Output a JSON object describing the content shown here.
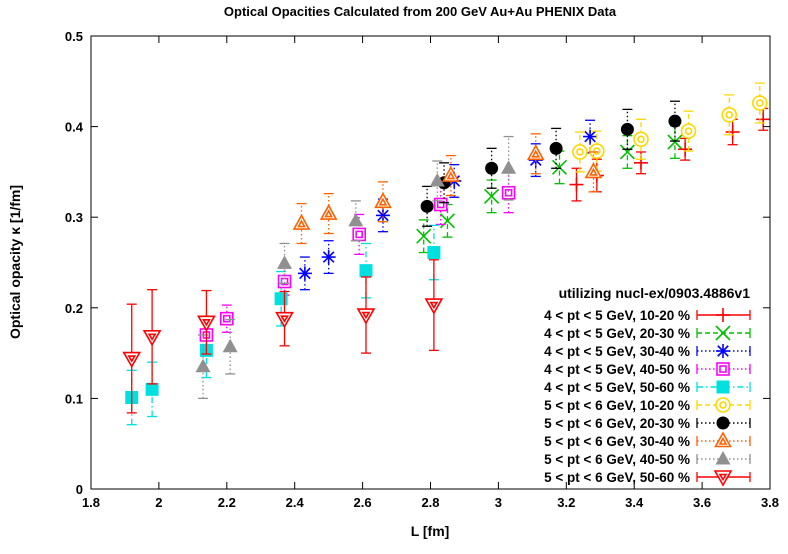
{
  "chart_data": {
    "type": "scatter",
    "title": "Optical Opacities Calculated from 200 GeV Au+Au PHENIX Data",
    "xlabel": "L [fm]",
    "ylabel": "Optical opacity κ [1/fm]",
    "xlim": [
      1.8,
      3.8
    ],
    "ylim": [
      0,
      0.5
    ],
    "xticks": [
      1.8,
      2,
      2.2,
      2.4,
      2.6,
      2.8,
      3,
      3.2,
      3.4,
      3.6,
      3.8
    ],
    "xtick_labels": [
      "1.8",
      "2",
      "2.2",
      "2.4",
      "2.6",
      "2.8",
      "3",
      "3.2",
      "3.4",
      "3.6",
      "3.8"
    ],
    "yticks": [
      0,
      0.1,
      0.2,
      0.3,
      0.4,
      0.5
    ],
    "ytick_labels": [
      "0",
      "0.1",
      "0.2",
      "0.3",
      "0.4",
      "0.5"
    ],
    "grid": false,
    "legend_title": "utilizing nucl-ex/0903.4886v1",
    "legend_position": "bottom-right",
    "series": [
      {
        "name": "4 < pt < 5 GeV, 10-20 %",
        "color": "#ff0000",
        "marker": "plus",
        "line": "solid",
        "points": [
          [
            3.23,
            0.336,
            0.018
          ],
          [
            3.29,
            0.346,
            0.018
          ],
          [
            3.42,
            0.36,
            0.012
          ],
          [
            3.55,
            0.375,
            0.012
          ],
          [
            3.69,
            0.394,
            0.014
          ],
          [
            3.78,
            0.408,
            0.012
          ]
        ]
      },
      {
        "name": "4 < pt < 5 GeV, 20-30 %",
        "color": "#00c000",
        "marker": "x",
        "line": "dashed",
        "points": [
          [
            2.78,
            0.279,
            0.018
          ],
          [
            2.85,
            0.296,
            0.018
          ],
          [
            2.98,
            0.323,
            0.018
          ],
          [
            3.18,
            0.355,
            0.018
          ],
          [
            3.38,
            0.372,
            0.018
          ],
          [
            3.52,
            0.383,
            0.018
          ]
        ]
      },
      {
        "name": "4 < pt < 5 GeV, 30-40 %",
        "color": "#0000ff",
        "marker": "star",
        "line": "dotted",
        "points": [
          [
            2.43,
            0.238,
            0.018
          ],
          [
            2.5,
            0.256,
            0.018
          ],
          [
            2.66,
            0.302,
            0.018
          ],
          [
            2.87,
            0.34,
            0.018
          ],
          [
            3.11,
            0.363,
            0.018
          ],
          [
            3.27,
            0.389,
            0.018
          ]
        ]
      },
      {
        "name": "4 < pt < 5 GeV, 40-50 %",
        "color": "#ff00ff",
        "marker": "square",
        "line": "dotted",
        "points": [
          [
            2.14,
            0.17,
            0.015
          ],
          [
            2.2,
            0.188,
            0.015
          ],
          [
            2.37,
            0.229,
            0.015
          ],
          [
            2.59,
            0.281,
            0.022
          ],
          [
            2.83,
            0.314,
            0.022
          ],
          [
            3.03,
            0.327,
            0.022
          ]
        ]
      },
      {
        "name": "4 < pt < 5 GeV, 50-60 %",
        "color": "#00e0e0",
        "marker": "filled-square",
        "line": "dashdot",
        "points": [
          [
            1.92,
            0.101,
            0.03
          ],
          [
            1.98,
            0.11,
            0.03
          ],
          [
            2.14,
            0.153,
            0.03
          ],
          [
            2.36,
            0.21,
            0.03
          ],
          [
            2.61,
            0.241,
            0.03
          ],
          [
            2.81,
            0.261,
            0.03
          ]
        ]
      },
      {
        "name": "5 < pt < 6 GeV, 10-20 %",
        "color": "#ffd700",
        "marker": "circle",
        "line": "dashed",
        "points": [
          [
            3.24,
            0.372,
            0.022
          ],
          [
            3.29,
            0.373,
            0.022
          ],
          [
            3.42,
            0.386,
            0.022
          ],
          [
            3.56,
            0.395,
            0.022
          ],
          [
            3.68,
            0.413,
            0.022
          ],
          [
            3.77,
            0.426,
            0.022
          ]
        ]
      },
      {
        "name": "5 < pt < 6 GeV, 20-30 %",
        "color": "#000000",
        "marker": "filled-circle",
        "line": "dotted",
        "points": [
          [
            2.79,
            0.312,
            0.022
          ],
          [
            2.84,
            0.338,
            0.022
          ],
          [
            2.98,
            0.354,
            0.022
          ],
          [
            3.17,
            0.376,
            0.022
          ],
          [
            3.38,
            0.397,
            0.022
          ],
          [
            3.52,
            0.406,
            0.022
          ]
        ]
      },
      {
        "name": "5 < pt < 6 GeV, 30-40 %",
        "color": "#ff6000",
        "marker": "triangle",
        "line": "dotted",
        "points": [
          [
            2.42,
            0.293,
            0.022
          ],
          [
            2.5,
            0.304,
            0.022
          ],
          [
            2.66,
            0.317,
            0.022
          ],
          [
            2.86,
            0.346,
            0.022
          ],
          [
            3.11,
            0.37,
            0.022
          ],
          [
            3.28,
            0.35,
            0.022
          ]
        ]
      },
      {
        "name": "5 < pt < 6 GeV, 40-50 %",
        "color": "#909090",
        "marker": "filled-triangle",
        "line": "dotted",
        "points": [
          [
            2.13,
            0.135,
            0.035
          ],
          [
            2.21,
            0.157,
            0.03
          ],
          [
            2.37,
            0.249,
            0.022
          ],
          [
            2.58,
            0.296,
            0.022
          ],
          [
            2.82,
            0.34,
            0.022
          ],
          [
            3.03,
            0.354,
            0.035
          ]
        ]
      },
      {
        "name": "5 < pt < 6 GeV, 50-60 %",
        "color": "#ff0000",
        "marker": "inverted-triangle",
        "line": "solid",
        "points": [
          [
            1.92,
            0.144,
            0.06
          ],
          [
            1.98,
            0.168,
            0.052
          ],
          [
            2.14,
            0.184,
            0.035
          ],
          [
            2.37,
            0.188,
            0.03
          ],
          [
            2.61,
            0.192,
            0.042
          ],
          [
            2.81,
            0.203,
            0.05
          ]
        ]
      }
    ]
  }
}
